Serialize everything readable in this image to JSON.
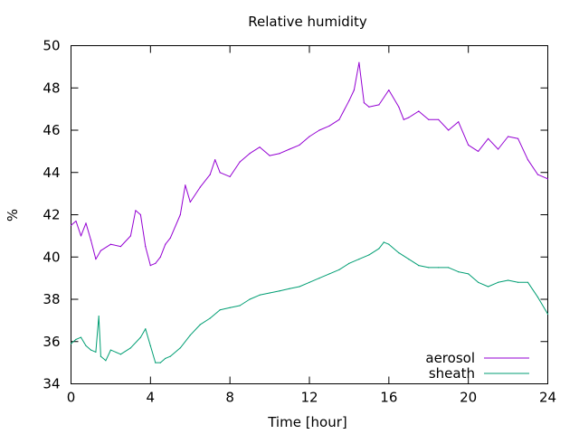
{
  "chart_data": {
    "type": "line",
    "title": "Relative humidity",
    "xlabel": "Time [hour]",
    "ylabel": "%",
    "xlim": [
      0,
      24
    ],
    "ylim": [
      34,
      50
    ],
    "xticks": [
      0,
      4,
      8,
      12,
      16,
      20,
      24
    ],
    "yticks": [
      34,
      36,
      38,
      40,
      42,
      44,
      46,
      48,
      50
    ],
    "grid": false,
    "legend_position": "bottom-right",
    "series": [
      {
        "name": "aerosol",
        "color": "#9400d3",
        "x": [
          0,
          0.25,
          0.5,
          0.75,
          1.0,
          1.25,
          1.5,
          2.0,
          2.5,
          3.0,
          3.25,
          3.5,
          3.75,
          4.0,
          4.25,
          4.5,
          4.75,
          5.0,
          5.5,
          5.75,
          6.0,
          6.5,
          7.0,
          7.25,
          7.5,
          8.0,
          8.5,
          9.0,
          9.5,
          10.0,
          10.5,
          11.0,
          11.5,
          12.0,
          12.5,
          13.0,
          13.5,
          14.0,
          14.25,
          14.5,
          14.75,
          15.0,
          15.5,
          16.0,
          16.5,
          16.75,
          17.0,
          17.5,
          18.0,
          18.5,
          19.0,
          19.5,
          20.0,
          20.5,
          21.0,
          21.5,
          22.0,
          22.5,
          23.0,
          23.5,
          24.0
        ],
        "values": [
          41.5,
          41.7,
          41.0,
          41.6,
          40.8,
          39.9,
          40.3,
          40.6,
          40.5,
          41.0,
          42.2,
          42.0,
          40.5,
          39.6,
          39.7,
          40.0,
          40.6,
          40.9,
          42.0,
          43.4,
          42.6,
          43.3,
          43.9,
          44.6,
          44.0,
          43.8,
          44.5,
          44.9,
          45.2,
          44.8,
          44.9,
          45.1,
          45.3,
          45.7,
          46.0,
          46.2,
          46.5,
          47.4,
          47.9,
          49.2,
          47.3,
          47.1,
          47.2,
          47.9,
          47.1,
          46.5,
          46.6,
          46.9,
          46.5,
          46.5,
          46.0,
          46.4,
          45.3,
          45.0,
          45.6,
          45.1,
          45.7,
          45.6,
          44.6,
          43.9,
          43.7
        ]
      },
      {
        "name": "sheath",
        "color": "#009e73",
        "x": [
          0,
          0.25,
          0.5,
          0.75,
          1.0,
          1.25,
          1.4,
          1.5,
          1.75,
          2.0,
          2.5,
          3.0,
          3.5,
          3.75,
          4.0,
          4.25,
          4.5,
          4.75,
          5.0,
          5.5,
          6.0,
          6.5,
          7.0,
          7.5,
          8.0,
          8.5,
          9.0,
          9.5,
          10.0,
          10.5,
          11.0,
          11.5,
          12.0,
          12.5,
          13.0,
          13.5,
          14.0,
          14.5,
          15.0,
          15.5,
          15.75,
          16.0,
          16.5,
          17.0,
          17.5,
          18.0,
          18.5,
          19.0,
          19.5,
          20.0,
          20.5,
          21.0,
          21.5,
          22.0,
          22.5,
          23.0,
          23.5,
          24.0
        ],
        "values": [
          35.9,
          36.1,
          36.2,
          35.8,
          35.6,
          35.5,
          37.2,
          35.3,
          35.1,
          35.6,
          35.4,
          35.7,
          36.2,
          36.6,
          35.8,
          35.0,
          35.0,
          35.2,
          35.3,
          35.7,
          36.3,
          36.8,
          37.1,
          37.5,
          37.6,
          37.7,
          38.0,
          38.2,
          38.3,
          38.4,
          38.5,
          38.6,
          38.8,
          39.0,
          39.2,
          39.4,
          39.7,
          39.9,
          40.1,
          40.4,
          40.7,
          40.6,
          40.2,
          39.9,
          39.6,
          39.5,
          39.5,
          39.5,
          39.3,
          39.2,
          38.8,
          38.6,
          38.8,
          38.9,
          38.8,
          38.8,
          38.1,
          37.3
        ]
      }
    ]
  }
}
